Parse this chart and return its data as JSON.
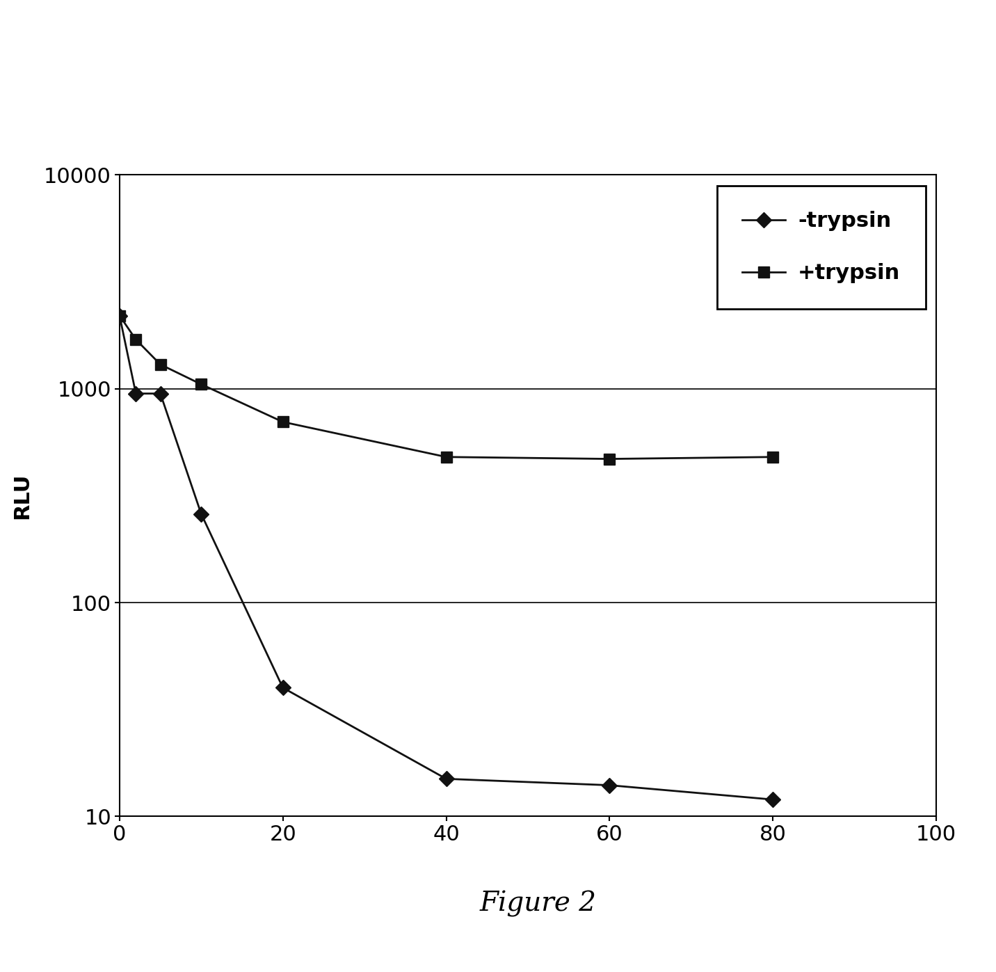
{
  "minus_trypsin_x": [
    0,
    2,
    5,
    10,
    20,
    40,
    60,
    80
  ],
  "minus_trypsin_y": [
    2200,
    950,
    950,
    260,
    40,
    15,
    14,
    12
  ],
  "plus_trypsin_x": [
    0,
    2,
    5,
    10,
    20,
    40,
    60,
    80
  ],
  "plus_trypsin_y": [
    2200,
    1700,
    1300,
    1050,
    700,
    480,
    470,
    480
  ],
  "minus_trypsin_label": "-trypsin",
  "plus_trypsin_label": "+trypsin",
  "ylabel": "RLU",
  "title": "Figure 2",
  "ylim_log": [
    10,
    10000
  ],
  "xlim": [
    0,
    100
  ],
  "xticks": [
    0,
    20,
    40,
    60,
    80,
    100
  ],
  "line_color": "#111111",
  "background_color": "#ffffff",
  "legend_fontsize": 22,
  "axis_tick_fontsize": 22,
  "ylabel_fontsize": 22,
  "title_fontsize": 28
}
